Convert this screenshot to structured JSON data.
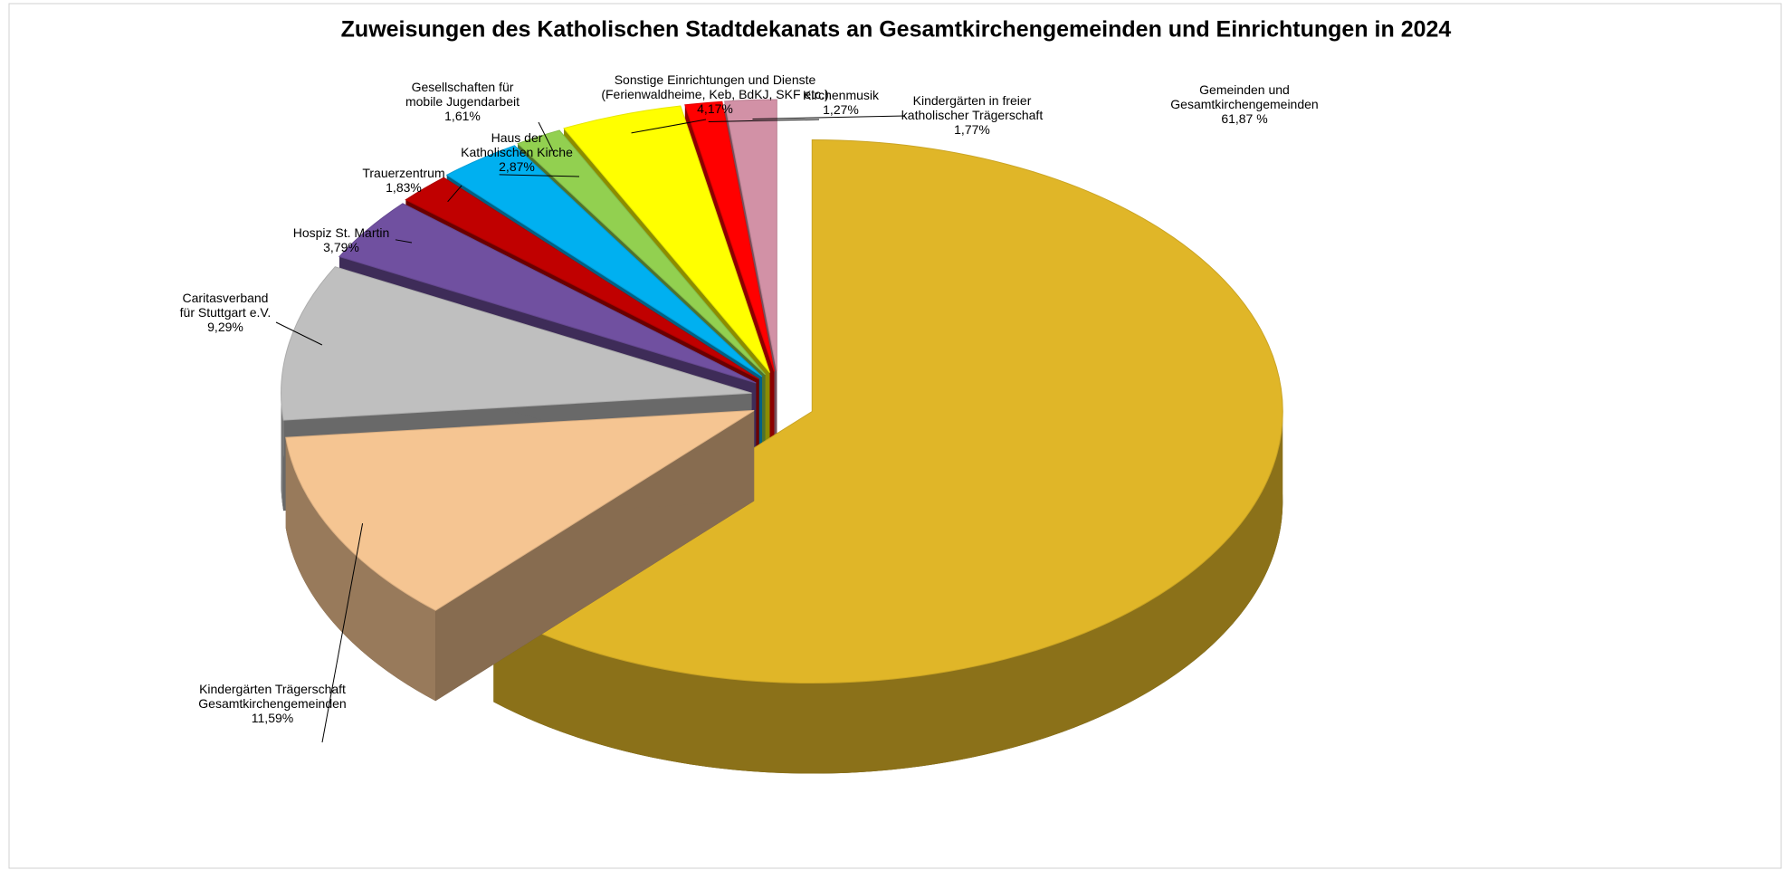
{
  "chart_data": {
    "type": "pie",
    "title": "Zuweisungen des Katholischen Stadtdekanats an Gesamtkirchengemeinden und Einrichtungen in 2024",
    "categories": [
      [
        "Gemeinden und",
        "Gesamtkirchengemeinden"
      ],
      [
        "Kindergärten Trägerschaft",
        "Gesamtkirchengemeinden"
      ],
      [
        "Caritasverband",
        "für Stuttgart e.V."
      ],
      [
        "Hospiz St. Martin"
      ],
      [
        "Trauerzentrum"
      ],
      [
        "Haus der",
        "Katholischen Kirche"
      ],
      [
        "Gesellschaften für",
        "mobile Jugendarbeit"
      ],
      [
        "Sonstige Einrichtungen und Dienste",
        "(Ferienwaldheime, Keb, BdKJ, SKF etc.)"
      ],
      [
        "Kirchenmusik"
      ],
      [
        "Kindergärten in freier",
        "katholischer Trägerschaft"
      ]
    ],
    "values": [
      61.87,
      11.59,
      9.29,
      3.79,
      1.83,
      2.87,
      1.61,
      4.17,
      1.27,
      1.77
    ],
    "value_labels": [
      "61,87 %",
      "11,59%",
      "9,29%",
      "3,79%",
      "1,83%",
      "2,87%",
      "1,61%",
      "4,17%",
      "1,27%",
      "1,77%"
    ],
    "colors": [
      "#e0b628",
      "#f5c592",
      "#bfbfbf",
      "#7050a0",
      "#c00000",
      "#00b0f0",
      "#92d050",
      "#ffff00",
      "#ff0000",
      "#d291a6"
    ]
  }
}
